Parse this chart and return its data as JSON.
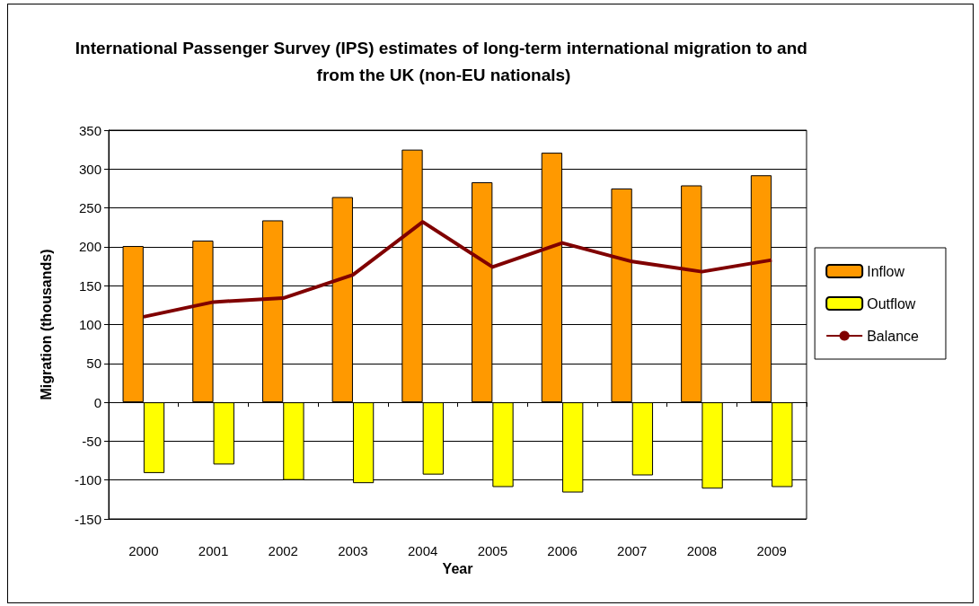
{
  "chart_data": {
    "type": "bar",
    "title": "International Passenger Survey (IPS) estimates of long-term international migration to and from the UK (non-EU nationals)",
    "xlabel": "Year",
    "ylabel": "Migration (thousands)",
    "categories": [
      "2000",
      "2001",
      "2002",
      "2003",
      "2004",
      "2005",
      "2006",
      "2007",
      "2008",
      "2009"
    ],
    "series": [
      {
        "name": "Inflow",
        "color": "#ff9900",
        "values": [
          201,
          208,
          234,
          264,
          325,
          283,
          321,
          275,
          279,
          292
        ]
      },
      {
        "name": "Outflow",
        "color": "#ffff00",
        "values": [
          -91,
          -80,
          -100,
          -104,
          -93,
          -109,
          -116,
          -94,
          -111,
          -109
        ]
      },
      {
        "name": "Balance",
        "type": "line",
        "color": "#800000",
        "values": [
          110,
          129,
          134,
          164,
          232,
          174,
          205,
          181,
          168,
          183
        ]
      }
    ],
    "ylim": [
      -150,
      350
    ],
    "yticks": [
      -150,
      -100,
      -50,
      0,
      50,
      100,
      150,
      200,
      250,
      300,
      350
    ],
    "grid": "y",
    "legend": "right",
    "marker": "none"
  }
}
